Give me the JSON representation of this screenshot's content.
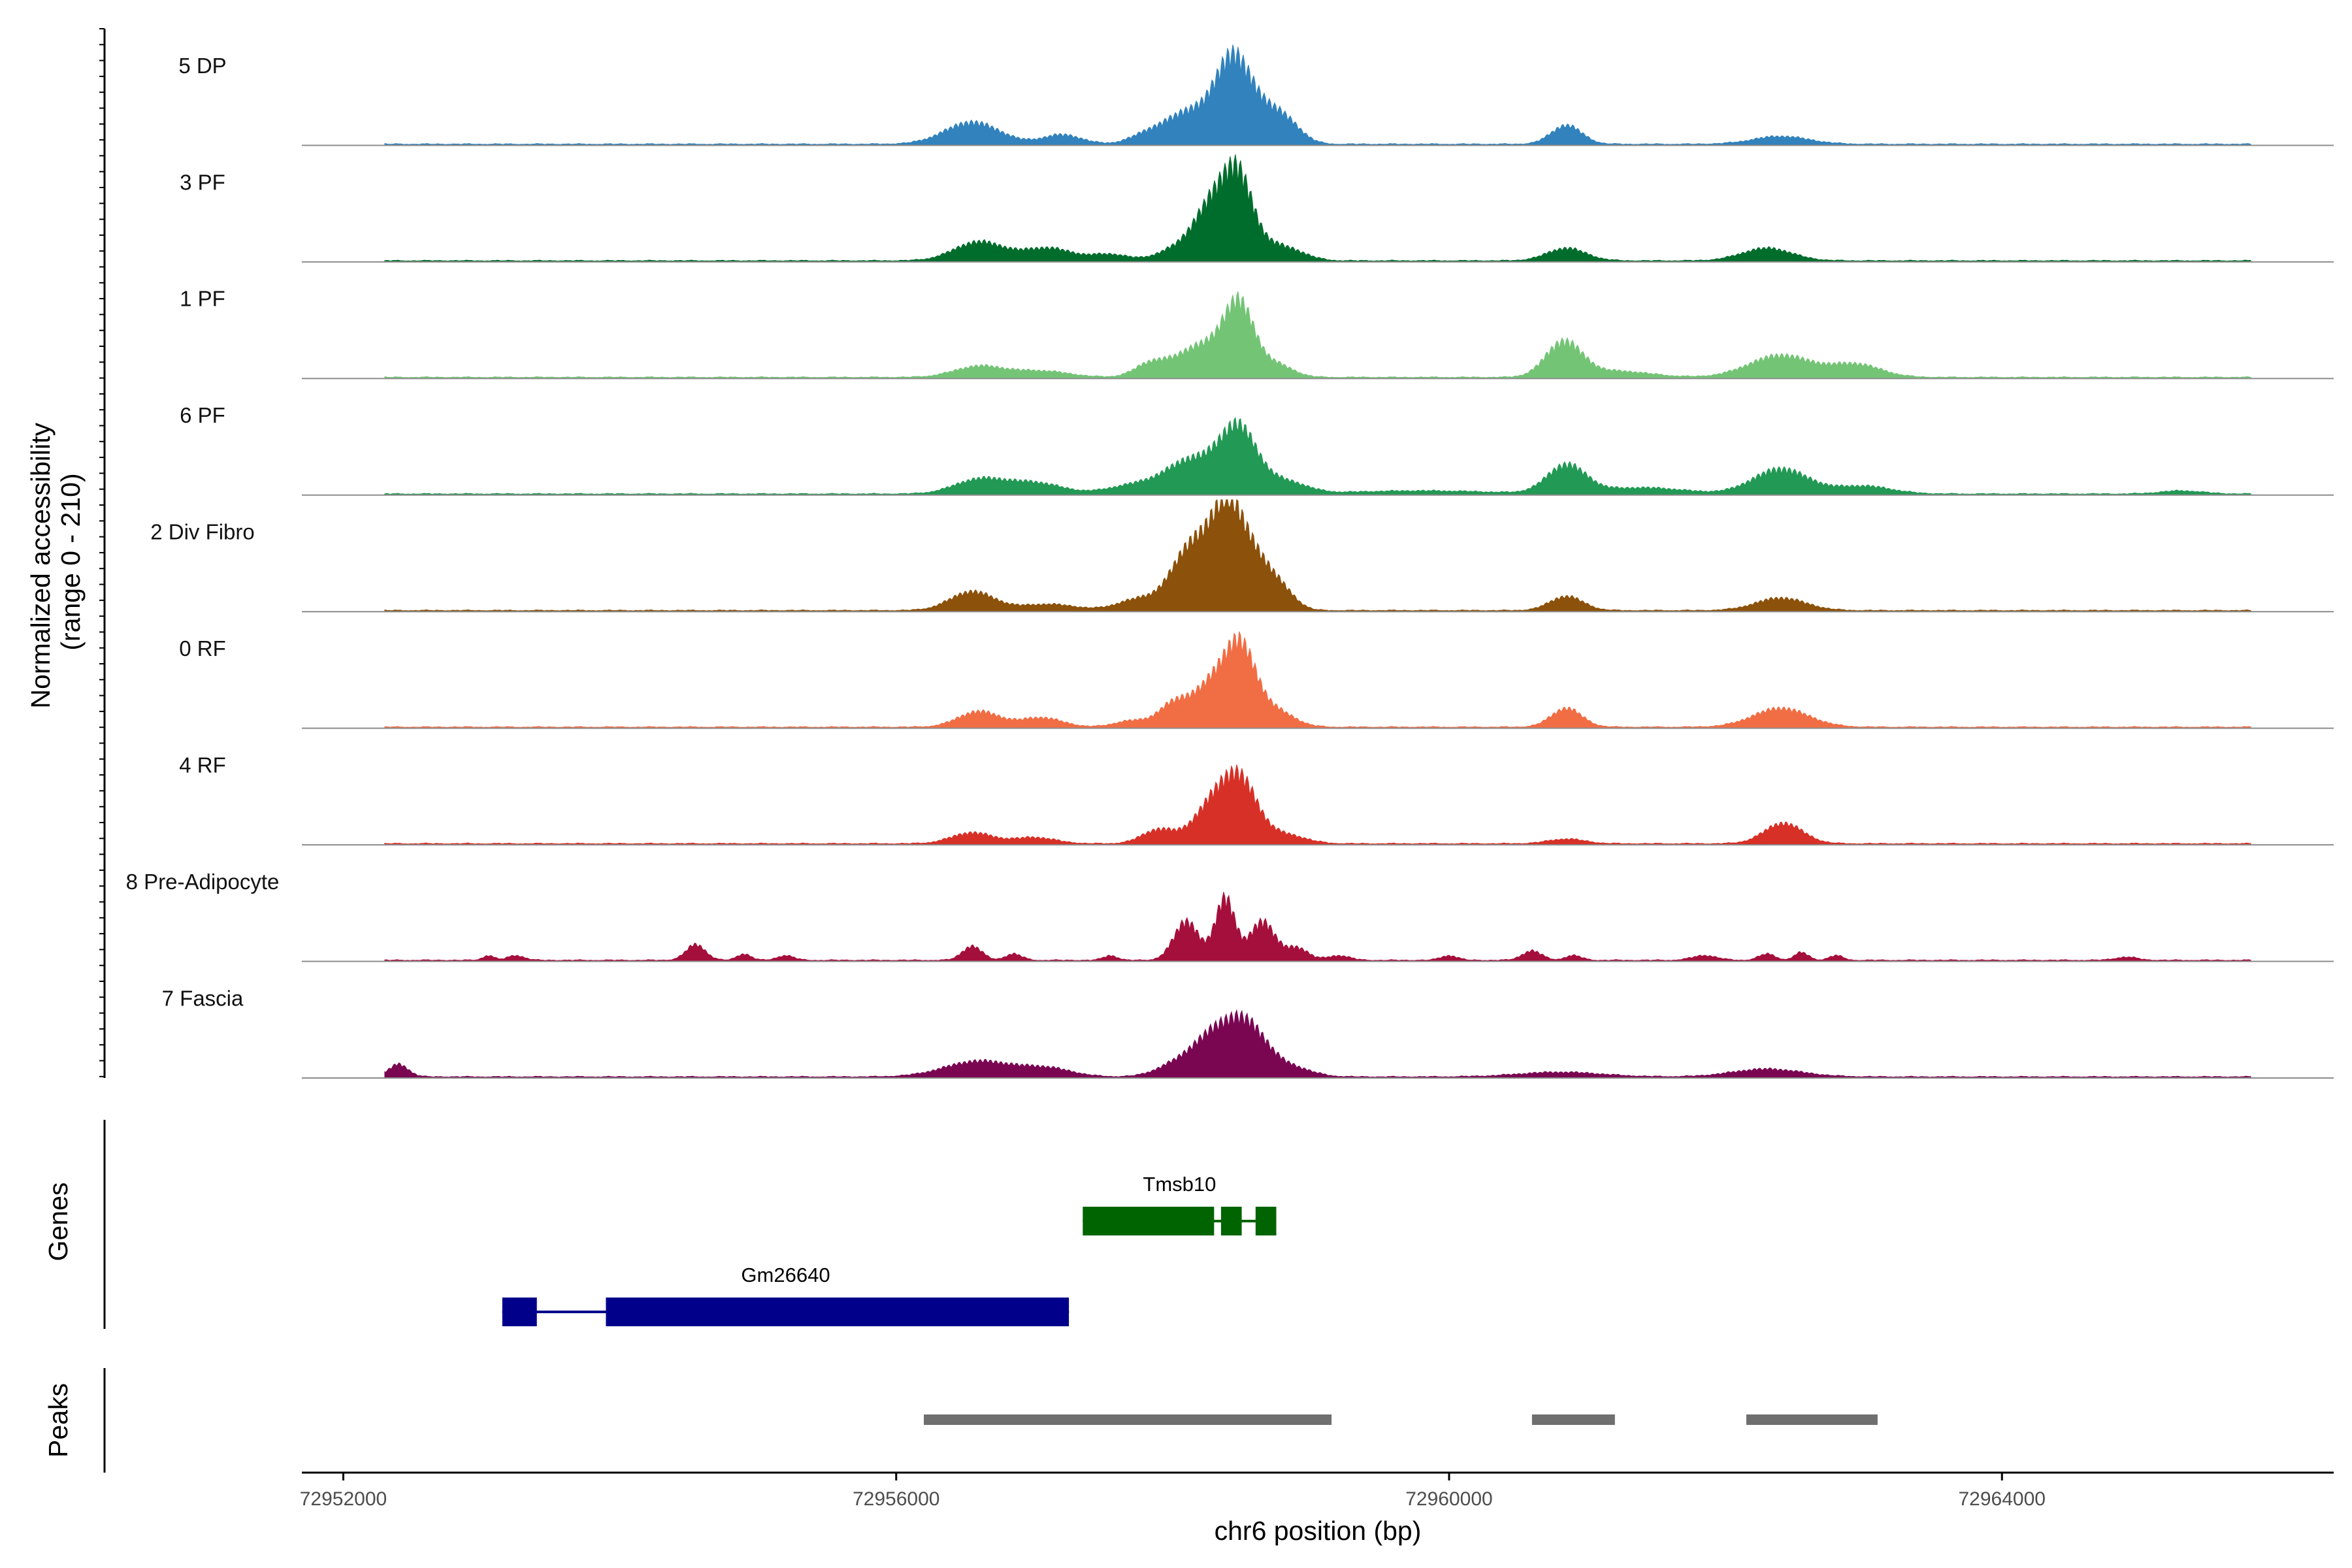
{
  "chart_data": {
    "type": "area",
    "title": "",
    "ylabel_line1": "Normalized accessibility",
    "ylabel_line2": "(range 0 - 210)",
    "yrange": [
      0,
      210
    ],
    "xlabel": "chr6 position (bp)",
    "xlim": [
      72951700,
      72966400
    ],
    "xticks": [
      72952000,
      72956000,
      72960000,
      72964000
    ],
    "xtick_labels": [
      "72952000",
      "72956000",
      "72960000",
      "72964000"
    ],
    "genes_label": "Genes",
    "peaks_label": "Peaks",
    "tracks": [
      {
        "name": "5 DP",
        "color": "#3182bd",
        "range": [
          72952300,
          72965800
        ],
        "peaks": [
          [
            72956550,
            14,
            200
          ],
          [
            72957200,
            6,
            140
          ],
          [
            72957800,
            4,
            120
          ],
          [
            72958150,
            22,
            200
          ],
          [
            72958420,
            40,
            110
          ],
          [
            72958580,
            22,
            120
          ],
          [
            72958800,
            16,
            120
          ],
          [
            72960850,
            12,
            110
          ],
          [
            72962400,
            5,
            200
          ]
        ]
      },
      {
        "name": "3 PF",
        "color": "#006d2c",
        "range": [
          72952300,
          72965800
        ],
        "peaks": [
          [
            72956600,
            12,
            180
          ],
          [
            72957100,
            8,
            180
          ],
          [
            72957550,
            4,
            130
          ],
          [
            72958000,
            6,
            130
          ],
          [
            72958300,
            38,
            140
          ],
          [
            72958480,
            40,
            100
          ],
          [
            72958650,
            8,
            130
          ],
          [
            72958850,
            6,
            130
          ],
          [
            72960850,
            8,
            140
          ],
          [
            72962300,
            8,
            180
          ]
        ]
      },
      {
        "name": "1 PF",
        "color": "#74c476",
        "range": [
          72952300,
          72965800
        ],
        "peaks": [
          [
            72956600,
            7,
            180
          ],
          [
            72957050,
            4,
            200
          ],
          [
            72957850,
            9,
            120
          ],
          [
            72958200,
            20,
            160
          ],
          [
            72958480,
            45,
            110
          ],
          [
            72958750,
            8,
            120
          ],
          [
            72960830,
            22,
            130
          ],
          [
            72961200,
            4,
            250
          ],
          [
            72962400,
            14,
            230
          ],
          [
            72962950,
            8,
            180
          ]
        ]
      },
      {
        "name": "6 PF",
        "color": "#229954",
        "range": [
          72952300,
          72965800
        ],
        "peaks": [
          [
            72956600,
            9,
            180
          ],
          [
            72957000,
            7,
            200
          ],
          [
            72957700,
            5,
            180
          ],
          [
            72958150,
            22,
            200
          ],
          [
            72958480,
            38,
            130
          ],
          [
            72958800,
            8,
            160
          ],
          [
            72959800,
            2,
            500
          ],
          [
            72960850,
            18,
            140
          ],
          [
            72961400,
            4,
            300
          ],
          [
            72962400,
            16,
            200
          ],
          [
            72963000,
            5,
            200
          ],
          [
            72965300,
            2,
            150
          ]
        ]
      },
      {
        "name": "2 Div Fibro",
        "color": "#8c510a",
        "range": [
          72952300,
          72965800
        ],
        "peaks": [
          [
            72956550,
            12,
            160
          ],
          [
            72957100,
            4,
            200
          ],
          [
            72957750,
            7,
            150
          ],
          [
            72958150,
            42,
            150
          ],
          [
            72958400,
            55,
            110
          ],
          [
            72958600,
            30,
            120
          ],
          [
            72958800,
            10,
            100
          ],
          [
            72960850,
            9,
            120
          ],
          [
            72962400,
            8,
            180
          ]
        ]
      },
      {
        "name": "0 RF",
        "color": "#f16d44",
        "range": [
          72952300,
          72965800
        ],
        "peaks": [
          [
            72956600,
            10,
            150
          ],
          [
            72957050,
            6,
            150
          ],
          [
            72957700,
            4,
            120
          ],
          [
            72958000,
            13,
            110
          ],
          [
            72958300,
            28,
            150
          ],
          [
            72958500,
            42,
            110
          ],
          [
            72958750,
            10,
            130
          ],
          [
            72960850,
            12,
            110
          ],
          [
            72962400,
            12,
            200
          ]
        ]
      },
      {
        "name": "4 RF",
        "color": "#d73027",
        "range": [
          72952300,
          72965800
        ],
        "peaks": [
          [
            72956550,
            7,
            150
          ],
          [
            72957000,
            4,
            150
          ],
          [
            72957900,
            9,
            120
          ],
          [
            72958300,
            26,
            140
          ],
          [
            72958500,
            34,
            120
          ],
          [
            72958800,
            6,
            150
          ],
          [
            72960850,
            3,
            130
          ],
          [
            72962420,
            13,
            140
          ]
        ]
      },
      {
        "name": "8 Pre-Adipocyte",
        "color": "#a50f3c",
        "range": [
          72952300,
          72965800
        ],
        "peaks": [
          [
            72953050,
            3,
            40
          ],
          [
            72953250,
            3,
            60
          ],
          [
            72954550,
            10,
            70
          ],
          [
            72954900,
            4,
            50
          ],
          [
            72955200,
            3,
            60
          ],
          [
            72956550,
            9,
            70
          ],
          [
            72956850,
            4,
            60
          ],
          [
            72957550,
            3,
            50
          ],
          [
            72958100,
            25,
            90
          ],
          [
            72958380,
            40,
            70
          ],
          [
            72958650,
            25,
            90
          ],
          [
            72958900,
            8,
            80
          ],
          [
            72959200,
            3,
            80
          ],
          [
            72960000,
            3,
            60
          ],
          [
            72960600,
            6,
            70
          ],
          [
            72960900,
            3,
            60
          ],
          [
            72961850,
            3,
            90
          ],
          [
            72962300,
            4,
            60
          ],
          [
            72962550,
            5,
            50
          ],
          [
            72962800,
            3,
            50
          ],
          [
            72964900,
            2,
            80
          ]
        ]
      },
      {
        "name": "7 Fascia",
        "color": "#7a0652",
        "range": [
          72952300,
          72965800
        ],
        "peaks": [
          [
            72952400,
            8,
            70
          ],
          [
            72956600,
            10,
            250
          ],
          [
            72957100,
            5,
            180
          ],
          [
            72958000,
            6,
            140
          ],
          [
            72958300,
            26,
            160
          ],
          [
            72958550,
            28,
            140
          ],
          [
            72958850,
            6,
            150
          ],
          [
            72960800,
            3,
            300
          ],
          [
            72962300,
            5,
            250
          ]
        ]
      }
    ],
    "genes": [
      {
        "name": "Tmsb10",
        "color": "#006400",
        "start": 72957350,
        "end": 72958750,
        "exons": [
          [
            72957350,
            72958300
          ],
          [
            72958350,
            72958500
          ],
          [
            72958600,
            72958750
          ]
        ]
      },
      {
        "name": "Gm26640",
        "color": "#00008b",
        "start": 72953150,
        "end": 72957250,
        "exons": [
          [
            72953150,
            72953400
          ],
          [
            72953900,
            72957250
          ]
        ]
      }
    ],
    "peak_regions": [
      [
        72956200,
        72959150
      ],
      [
        72960600,
        72961200
      ],
      [
        72962150,
        72963100
      ]
    ]
  }
}
